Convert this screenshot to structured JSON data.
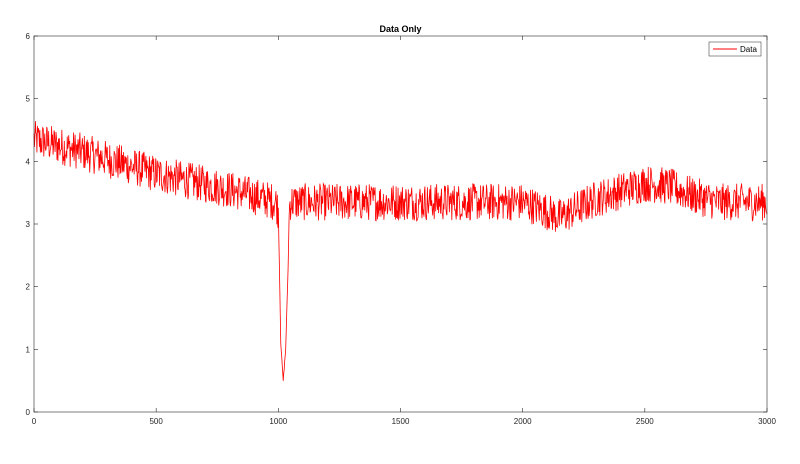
{
  "chart_data": {
    "type": "line",
    "title": "Data Only",
    "xlabel": "",
    "ylabel": "",
    "xlim": [
      0,
      3000
    ],
    "ylim": [
      0,
      6
    ],
    "xticks": [
      0,
      500,
      1000,
      1500,
      2000,
      2500,
      3000
    ],
    "yticks": [
      0,
      1,
      2,
      3,
      4,
      5,
      6
    ],
    "grid": false,
    "legend": {
      "position": "top-right",
      "entries": [
        "Data"
      ]
    },
    "series": [
      {
        "name": "Data",
        "color": "#ff0000",
        "noise_amplitude": 0.3,
        "trend": {
          "x": [
            0,
            200,
            500,
            800,
            990,
            1000,
            1005,
            1010,
            1020,
            1030,
            1040,
            1045,
            1050,
            1100,
            1500,
            1800,
            2000,
            2100,
            2150,
            2300,
            2500,
            2600,
            2700,
            2800,
            3000
          ],
          "y": [
            4.35,
            4.15,
            3.8,
            3.55,
            3.35,
            3.2,
            2.2,
            1.1,
            0.5,
            1.0,
            2.3,
            3.3,
            3.35,
            3.35,
            3.35,
            3.35,
            3.35,
            3.2,
            3.1,
            3.4,
            3.65,
            3.6,
            3.45,
            3.35,
            3.35
          ]
        }
      }
    ]
  }
}
